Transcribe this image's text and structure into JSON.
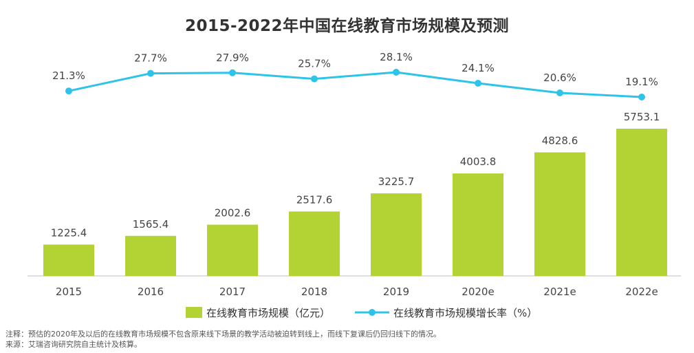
{
  "chart_data": {
    "type": "bar+line",
    "title": "2015-2022年中国在线教育市场规模及预测",
    "categories": [
      "2015",
      "2016",
      "2017",
      "2018",
      "2019",
      "2020e",
      "2021e",
      "2022e"
    ],
    "series": [
      {
        "name": "在线教育市场规模（亿元）",
        "type": "bar",
        "values": [
          1225.4,
          1565.4,
          2002.6,
          2517.6,
          3225.7,
          4003.8,
          4828.6,
          5753.1
        ],
        "labels": [
          "1225.4",
          "1565.4",
          "2002.6",
          "2517.6",
          "3225.7",
          "4003.8",
          "4828.6",
          "5753.1"
        ]
      },
      {
        "name": "在线教育市场规模增长率（%）",
        "type": "line",
        "values": [
          21.3,
          27.7,
          27.9,
          25.7,
          28.1,
          24.1,
          20.6,
          19.1
        ],
        "labels": [
          "21.3%",
          "27.7%",
          "27.9%",
          "25.7%",
          "28.1%",
          "24.1%",
          "20.6%",
          "19.1%"
        ]
      }
    ],
    "legend_position": "bottom",
    "colors": {
      "bar": "#B3D334",
      "line": "#2EC3E8"
    },
    "grid": false
  },
  "notes": {
    "note": "注释：预估的2020年及以后的在线教育市场规模不包含原来线下场景的教学活动被迫转到线上，而线下复课后仍回归线下的情况。",
    "source": "来源：艾瑞咨询研究院自主统计及核算。"
  }
}
